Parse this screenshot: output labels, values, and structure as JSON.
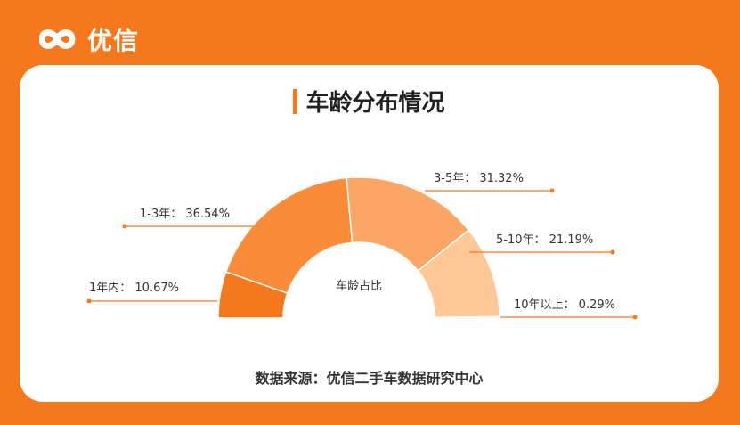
{
  "brand": {
    "name": "优信"
  },
  "title": "车龄分布情况",
  "source": "数据来源：优信二手车数据研究中心",
  "chart_data": {
    "type": "pie",
    "subtype": "half-donut",
    "center_label": "车龄占比",
    "slices": [
      {
        "label": "1年内：",
        "value": 10.67,
        "text": "10.67%",
        "color": "#f5781c"
      },
      {
        "label": "1-3年：",
        "value": 36.54,
        "text": "36.54%",
        "color": "#f98b39"
      },
      {
        "label": "3-5年：",
        "value": 31.32,
        "text": "31.32%",
        "color": "#fba664"
      },
      {
        "label": "5-10年：",
        "value": 21.19,
        "text": "21.19%",
        "color": "#fdc796"
      },
      {
        "label": "10年以上：",
        "value": 0.29,
        "text": "0.29%",
        "color": "#fde2c8"
      }
    ],
    "leader_color": "#f5781c"
  }
}
